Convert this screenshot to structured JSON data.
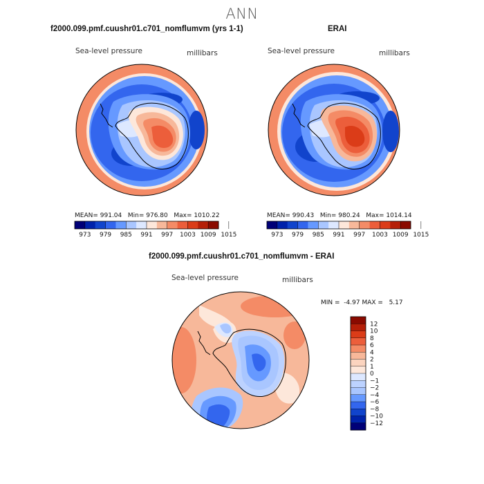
{
  "main_title": "ANN",
  "chart_data": [
    {
      "type": "heatmap",
      "projection": "south-polar-stereographic",
      "title": "f2000.099.pmf.cuushr01.c701_nomflumvm (yrs 1-1)",
      "variable": "Sea-level pressure",
      "units": "millibars",
      "stats": {
        "mean_label": "MEAN=",
        "mean": "991.04",
        "min_label": "Min=",
        "min": "976.80",
        "max_label": "Max=",
        "max": "1010.22"
      },
      "colorbar": {
        "orientation": "horizontal",
        "colors": [
          "#000077",
          "#0022aa",
          "#1144cc",
          "#3366ee",
          "#6699ff",
          "#a9c6ff",
          "#dde8ff",
          "#fde7da",
          "#f7b89a",
          "#f48b66",
          "#ec5e3b",
          "#db3c18",
          "#b51f08",
          "#8a0a00"
        ],
        "labels": [
          "973",
          "979",
          "985",
          "991",
          "997",
          "1003",
          "1009",
          "1015"
        ]
      }
    },
    {
      "type": "heatmap",
      "projection": "south-polar-stereographic",
      "title": "ERAI",
      "variable": "Sea-level pressure",
      "units": "millibars",
      "stats": {
        "mean_label": "MEAN=",
        "mean": "990.43",
        "min_label": "Min=",
        "min": "980.24",
        "max_label": "Max=",
        "max": "1014.14"
      },
      "colorbar": {
        "orientation": "horizontal",
        "colors": [
          "#000077",
          "#0022aa",
          "#1144cc",
          "#3366ee",
          "#6699ff",
          "#a9c6ff",
          "#dde8ff",
          "#fde7da",
          "#f7b89a",
          "#f48b66",
          "#ec5e3b",
          "#db3c18",
          "#b51f08",
          "#8a0a00"
        ],
        "labels": [
          "973",
          "979",
          "985",
          "991",
          "997",
          "1003",
          "1009",
          "1015"
        ]
      }
    },
    {
      "type": "heatmap",
      "projection": "south-polar-stereographic",
      "title": "f2000.099.pmf.cuushr01.c701_nomflumvm - ERAI",
      "variable": "Sea-level pressure",
      "units": "millibars",
      "stats": {
        "min_label": "MIN =",
        "min": "-4.97",
        "max_label": "MAX =",
        "max": "5.17"
      },
      "colorbar": {
        "orientation": "vertical",
        "colors": [
          "#8a0a00",
          "#b51f08",
          "#db3c18",
          "#ec5e3b",
          "#f48b66",
          "#f7b89a",
          "#fbd4bf",
          "#fde7da",
          "#dde8ff",
          "#bcd2ff",
          "#a9c6ff",
          "#6699ff",
          "#3366ee",
          "#1144cc",
          "#0022aa",
          "#000077"
        ],
        "labels": [
          "12",
          "10",
          "8",
          "6",
          "4",
          "2",
          "1",
          "0",
          "−1",
          "−2",
          "−4",
          "−6",
          "−8",
          "−10",
          "−12"
        ]
      }
    }
  ]
}
